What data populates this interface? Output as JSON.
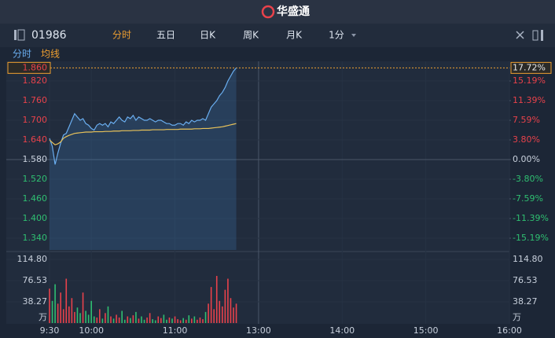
{
  "chart_data": {
    "type": "line",
    "title": "华盛通",
    "symbol": "01986",
    "tabs": [
      "分时",
      "五日",
      "日K",
      "周K",
      "月K",
      "1分"
    ],
    "active_tab": 0,
    "legend_labels": [
      "分时",
      "均线"
    ],
    "xlim": [
      0,
      330
    ],
    "xticks": [
      {
        "value": 0,
        "label": "9:30"
      },
      {
        "value": 30,
        "label": "10:00"
      },
      {
        "value": 90,
        "label": "11:00"
      },
      {
        "value": 150,
        "label": "13:00"
      },
      {
        "value": 210,
        "label": "14:00"
      },
      {
        "value": 270,
        "label": "15:00"
      },
      {
        "value": 330,
        "label": "16:00"
      }
    ],
    "x": [
      0,
      2,
      4,
      6,
      8,
      10,
      12,
      14,
      16,
      18,
      20,
      22,
      24,
      26,
      28,
      30,
      32,
      34,
      36,
      38,
      40,
      42,
      44,
      46,
      48,
      50,
      52,
      54,
      56,
      58,
      60,
      62,
      64,
      66,
      68,
      70,
      72,
      74,
      76,
      78,
      80,
      82,
      84,
      86,
      88,
      90,
      92,
      94,
      96,
      98,
      100,
      102,
      104,
      106,
      108,
      110,
      112,
      114,
      116,
      118,
      120,
      122,
      124,
      126,
      128,
      130,
      132,
      134
    ],
    "series": [
      {
        "name": "分时",
        "color": "#6aaef0",
        "values": [
          1.645,
          1.62,
          1.565,
          1.6,
          1.63,
          1.655,
          1.66,
          1.68,
          1.7,
          1.72,
          1.71,
          1.7,
          1.705,
          1.69,
          1.685,
          1.675,
          1.67,
          1.685,
          1.69,
          1.685,
          1.69,
          1.68,
          1.695,
          1.69,
          1.7,
          1.71,
          1.7,
          1.695,
          1.71,
          1.705,
          1.715,
          1.7,
          1.71,
          1.705,
          1.7,
          1.7,
          1.705,
          1.7,
          1.695,
          1.7,
          1.7,
          1.695,
          1.69,
          1.69,
          1.685,
          1.685,
          1.69,
          1.69,
          1.685,
          1.695,
          1.69,
          1.7,
          1.695,
          1.7,
          1.7,
          1.705,
          1.7,
          1.72,
          1.74,
          1.75,
          1.76,
          1.775,
          1.785,
          1.8,
          1.82,
          1.835,
          1.85,
          1.86
        ]
      },
      {
        "name": "均线",
        "color": "#e8c25a",
        "values": [
          1.64,
          1.632,
          1.625,
          1.628,
          1.634,
          1.645,
          1.65,
          1.654,
          1.657,
          1.66,
          1.661,
          1.662,
          1.663,
          1.664,
          1.664,
          1.664,
          1.665,
          1.665,
          1.665,
          1.665,
          1.666,
          1.666,
          1.666,
          1.667,
          1.667,
          1.667,
          1.668,
          1.668,
          1.668,
          1.668,
          1.669,
          1.669,
          1.669,
          1.67,
          1.67,
          1.67,
          1.67,
          1.671,
          1.671,
          1.671,
          1.671,
          1.671,
          1.672,
          1.672,
          1.672,
          1.672,
          1.672,
          1.673,
          1.673,
          1.673,
          1.673,
          1.673,
          1.674,
          1.674,
          1.674,
          1.675,
          1.675,
          1.675,
          1.676,
          1.677,
          1.678,
          1.679,
          1.68,
          1.682,
          1.684,
          1.686,
          1.688,
          1.69
        ]
      }
    ],
    "ylim": [
      1.304,
      1.88
    ],
    "yticks": [
      {
        "value": 1.86,
        "label": "1.860"
      },
      {
        "value": 1.82,
        "label": "1.820"
      },
      {
        "value": 1.76,
        "label": "1.760"
      },
      {
        "value": 1.7,
        "label": "1.700"
      },
      {
        "value": 1.64,
        "label": "1.640"
      },
      {
        "value": 1.58,
        "label": "1.580"
      },
      {
        "value": 1.52,
        "label": "1.520"
      },
      {
        "value": 1.46,
        "label": "1.460"
      },
      {
        "value": 1.4,
        "label": "1.400"
      },
      {
        "value": 1.34,
        "label": "1.340"
      }
    ],
    "y2lim": [
      -17.47,
      18.99
    ],
    "y2ticks": [
      {
        "value": 17.72,
        "label": "17.72%"
      },
      {
        "value": 15.19,
        "label": "15.19%"
      },
      {
        "value": 11.39,
        "label": "11.39%"
      },
      {
        "value": 7.59,
        "label": "7.59%"
      },
      {
        "value": 3.8,
        "label": "3.80%"
      },
      {
        "value": 0,
        "label": "0.00%"
      },
      {
        "value": -3.8,
        "label": "-3.80%"
      },
      {
        "value": -7.59,
        "label": "-7.59%"
      },
      {
        "value": -11.39,
        "label": "-11.39%"
      },
      {
        "value": -15.19,
        "label": "-15.19%"
      }
    ],
    "volume": {
      "values": [
        62,
        40,
        70,
        35,
        55,
        25,
        80,
        30,
        45,
        20,
        28,
        18,
        55,
        22,
        15,
        40,
        12,
        10,
        25,
        8,
        18,
        30,
        12,
        8,
        15,
        10,
        22,
        6,
        12,
        9,
        14,
        20,
        8,
        12,
        6,
        10,
        18,
        7,
        5,
        12,
        9,
        15,
        6,
        10,
        8,
        12,
        7,
        5,
        9,
        6,
        14,
        8,
        12,
        6,
        10,
        7,
        20,
        35,
        65,
        25,
        85,
        40,
        30,
        60,
        80,
        45,
        28,
        35
      ],
      "ylim": [
        0,
        114.8
      ],
      "yticks": [
        {
          "value": 114.8,
          "label": "114.80"
        },
        76.53,
        38.27
      ],
      "unit": "万",
      "up_color": "#e8424b",
      "down_color": "#2fbf71"
    }
  }
}
